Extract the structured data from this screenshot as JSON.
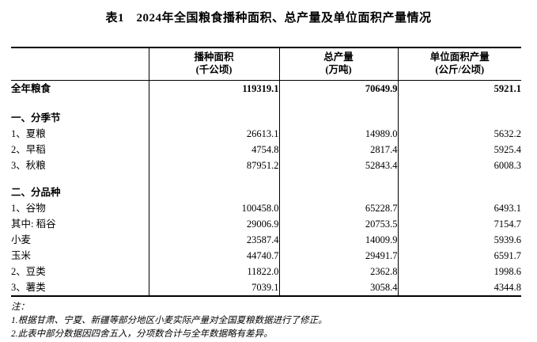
{
  "title": "表1　2024年全国粮食播种面积、总产量及单位面积产量情况",
  "table": {
    "columns": [
      {
        "label": "播种面积",
        "unit": "(千公顷)"
      },
      {
        "label": "总产量",
        "unit": "(万吨)"
      },
      {
        "label": "单位面积产量",
        "unit": "(公斤/公顷)"
      }
    ],
    "rows": [
      {
        "label": "全年粮食",
        "values": [
          "119319.1",
          "70649.9",
          "5921.1"
        ],
        "bold": true,
        "indent": 0,
        "kind": "first-row"
      },
      {
        "kind": "spacer"
      },
      {
        "label": "一、分季节",
        "values": [
          "",
          "",
          ""
        ],
        "bold": true,
        "indent": 0,
        "kind": "section"
      },
      {
        "label": "1、夏粮",
        "values": [
          "26613.1",
          "14989.0",
          "5632.2"
        ],
        "indent": 1
      },
      {
        "label": "2、早稻",
        "values": [
          "4754.8",
          "2817.4",
          "5925.4"
        ],
        "indent": 1
      },
      {
        "label": "3、秋粮",
        "values": [
          "87951.2",
          "52843.4",
          "6008.3"
        ],
        "indent": 1
      },
      {
        "kind": "spacer"
      },
      {
        "label": "二、分品种",
        "values": [
          "",
          "",
          ""
        ],
        "bold": true,
        "indent": 0,
        "kind": "section"
      },
      {
        "label": "1、谷物",
        "values": [
          "100458.0",
          "65228.7",
          "6493.1"
        ],
        "indent": 1
      },
      {
        "label": "其中: 稻谷",
        "values": [
          "29006.9",
          "20753.5",
          "7154.7"
        ],
        "indent": 2
      },
      {
        "label": "小麦",
        "values": [
          "23587.4",
          "14009.9",
          "5939.6"
        ],
        "indent": 3
      },
      {
        "label": "玉米",
        "values": [
          "44740.7",
          "29491.7",
          "6591.7"
        ],
        "indent": 3
      },
      {
        "label": "2、豆类",
        "values": [
          "11822.0",
          "2362.8",
          "1998.6"
        ],
        "indent": 1
      },
      {
        "label": "3、薯类",
        "values": [
          "7039.1",
          "3058.4",
          "4344.8"
        ],
        "indent": 1
      }
    ]
  },
  "notes": {
    "label": "注：",
    "items": [
      "1.根据甘肃、宁夏、新疆等部分地区小麦实际产量对全国夏粮数据进行了修正。",
      "2.此表中部分数据因四舍五入，分项数合计与全年数据略有差异。"
    ]
  }
}
